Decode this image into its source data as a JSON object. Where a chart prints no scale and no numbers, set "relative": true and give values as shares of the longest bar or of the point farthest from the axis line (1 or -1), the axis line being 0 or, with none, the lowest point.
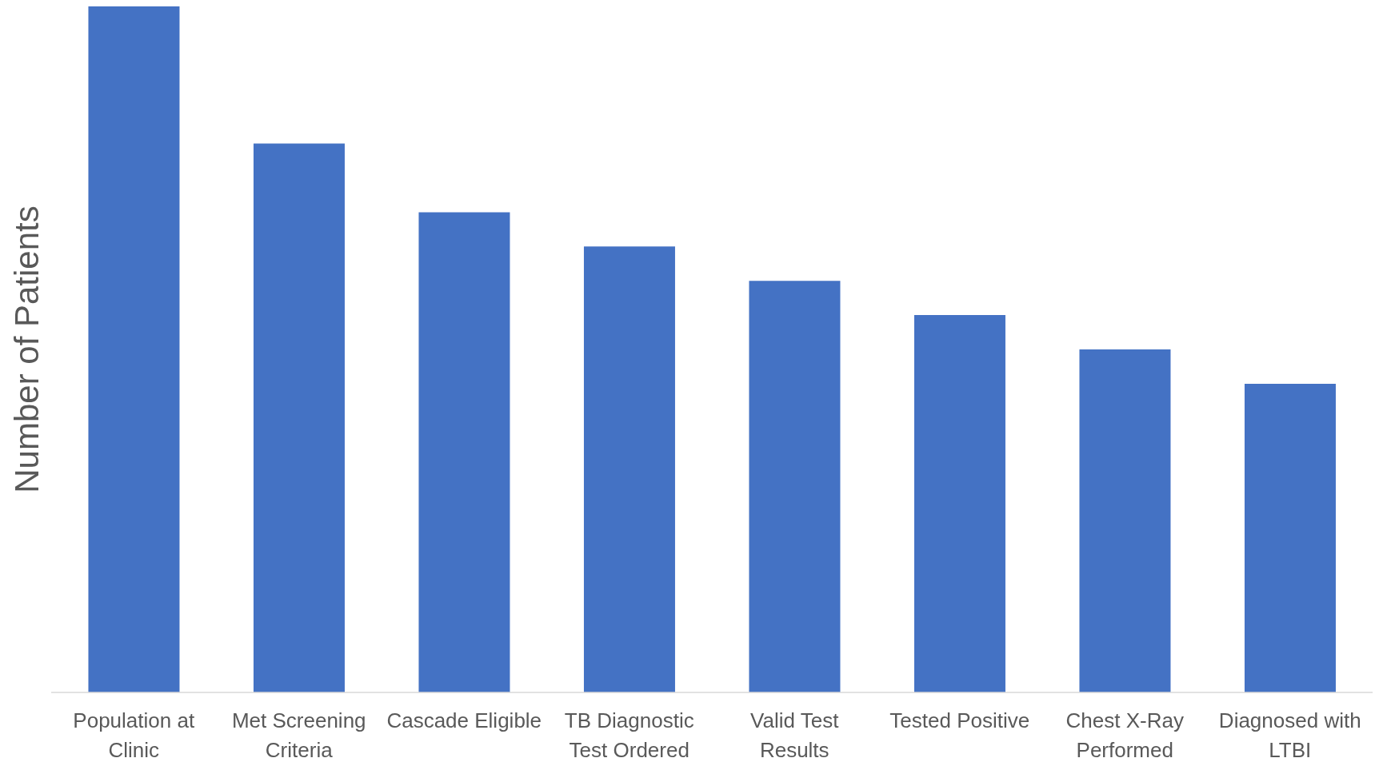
{
  "chart_data": {
    "type": "bar",
    "ylabel": "Number of Patients",
    "categories": [
      "Population at Clinic",
      "Met Screening Criteria",
      "Cascade Eligible",
      "TB Diagnostic Test Ordered",
      "Valid Test Results",
      "Tested Positive",
      "Chest X-Ray Performed",
      "Diagnosed with LTBI"
    ],
    "values": [
      1,
      0.8,
      0.7,
      0.65,
      0.6,
      0.55,
      0.5,
      0.45
    ],
    "color": "#4472c4",
    "relative": true
  }
}
